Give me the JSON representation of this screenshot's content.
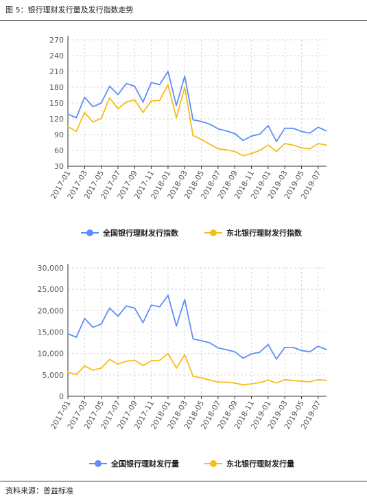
{
  "figure": {
    "title": "图 5：银行理财发行量及发行指数走势",
    "source": "资料来源：普益标准"
  },
  "chart_data": [
    {
      "type": "line",
      "x": [
        "2017-01",
        "2017-02",
        "2017-03",
        "2017-04",
        "2017-05",
        "2017-06",
        "2017-07",
        "2017-08",
        "2017-09",
        "2017-10",
        "2017-11",
        "2017-12",
        "2018-01",
        "2018-02",
        "2018-03",
        "2018-04",
        "2018-05",
        "2018-06",
        "2018-07",
        "2018-08",
        "2018-09",
        "2018-10",
        "2018-11",
        "2018-12",
        "2019-01",
        "2019-02",
        "2019-03",
        "2019-04",
        "2019-05",
        "2019-06",
        "2019-07",
        "2019-08"
      ],
      "x_tick_labels": [
        "2017-01",
        "2017-03",
        "2017-05",
        "2017-07",
        "2017-09",
        "2017-11",
        "2018-01",
        "2018-03",
        "2018-05",
        "2018-07",
        "2018-09",
        "2018-11",
        "2019-01",
        "2019-03",
        "2019-05",
        "2019-07"
      ],
      "series": [
        {
          "name": "全国银行理财发行指数",
          "color": "#5B8FF9",
          "values": [
            129,
            122,
            161,
            143,
            150,
            182,
            166,
            187,
            182,
            152,
            189,
            185,
            210,
            145,
            201,
            118,
            115,
            110,
            101,
            97,
            92,
            79,
            87,
            91,
            107,
            77,
            102,
            102,
            96,
            93,
            104,
            97
          ]
        },
        {
          "name": "东北银行理财发行指数",
          "color": "#F6BD16",
          "values": [
            105,
            96,
            132,
            114,
            121,
            160,
            139,
            152,
            156,
            132,
            154,
            155,
            185,
            122,
            180,
            88,
            81,
            72,
            63,
            61,
            58,
            50,
            54,
            60,
            70,
            58,
            73,
            70,
            65,
            63,
            73,
            70
          ]
        }
      ],
      "ylim": [
        30,
        270
      ],
      "yticks": [
        30,
        60,
        90,
        120,
        150,
        180,
        210,
        240,
        270
      ],
      "ytick_labels": [
        "30",
        "60",
        "90",
        "120",
        "150",
        "180",
        "210",
        "240",
        "270"
      ],
      "grid": true,
      "legend": "bottom-center"
    },
    {
      "type": "line",
      "x": [
        "2017-01",
        "2017-02",
        "2017-03",
        "2017-04",
        "2017-05",
        "2017-06",
        "2017-07",
        "2017-08",
        "2017-09",
        "2017-10",
        "2017-11",
        "2017-12",
        "2018-01",
        "2018-02",
        "2018-03",
        "2018-04",
        "2018-05",
        "2018-06",
        "2018-07",
        "2018-08",
        "2018-09",
        "2018-10",
        "2018-11",
        "2018-12",
        "2019-01",
        "2019-02",
        "2019-03",
        "2019-04",
        "2019-05",
        "2019-06",
        "2019-07",
        "2019-08"
      ],
      "x_tick_labels": [
        "2017-01",
        "2017-03",
        "2017-05",
        "2017-07",
        "2017-09",
        "2017-11",
        "2018-01",
        "2018-03",
        "2018-05",
        "2018-07",
        "2018-09",
        "2018-11",
        "2019-01",
        "2019-03",
        "2019-05",
        "2019-07"
      ],
      "series": [
        {
          "name": "全国银行理财发行量",
          "color": "#5B8FF9",
          "values": [
            14600,
            13800,
            18200,
            16100,
            16900,
            20600,
            18700,
            21100,
            20600,
            17200,
            21300,
            20900,
            23600,
            16400,
            22600,
            13400,
            13000,
            12500,
            11300,
            10900,
            10400,
            8900,
            9900,
            10300,
            12100,
            8700,
            11400,
            11400,
            10700,
            10400,
            11700,
            10900
          ]
        },
        {
          "name": "东北银行理财发行量",
          "color": "#F6BD16",
          "values": [
            5600,
            5100,
            7100,
            6100,
            6600,
            8600,
            7500,
            8200,
            8400,
            7200,
            8300,
            8400,
            10000,
            6600,
            9700,
            4700,
            4300,
            3800,
            3300,
            3300,
            3100,
            2700,
            2900,
            3200,
            3800,
            3100,
            3900,
            3700,
            3500,
            3400,
            3900,
            3700
          ]
        }
      ],
      "ylim": [
        0,
        30000
      ],
      "yticks": [
        0,
        5000,
        10000,
        15000,
        20000,
        25000,
        30000
      ],
      "ytick_labels": [
        "0",
        "5,000",
        "10,000",
        "15,000",
        "20,000",
        "25,000",
        "30,000"
      ],
      "grid": true,
      "legend": "bottom-center"
    }
  ]
}
